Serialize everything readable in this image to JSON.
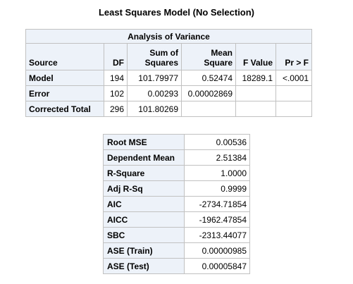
{
  "title": "Least Squares Model (No Selection)",
  "anova": {
    "caption": "Analysis of Variance",
    "headers": {
      "source": "Source",
      "df": "DF",
      "ss_line1": "Sum of",
      "ss_line2": "Squares",
      "ms_line1": "Mean",
      "ms_line2": "Square",
      "f": "F Value",
      "p": "Pr > F"
    },
    "rows": [
      {
        "source": "Model",
        "df": "194",
        "ss": "101.79977",
        "ms": "0.52474",
        "f": "18289.1",
        "p": "<.0001"
      },
      {
        "source": "Error",
        "df": "102",
        "ss": "0.00293",
        "ms": "0.00002869",
        "f": "",
        "p": ""
      },
      {
        "source": "Corrected Total",
        "df": "296",
        "ss": "101.80269",
        "ms": "",
        "f": "",
        "p": ""
      }
    ]
  },
  "fit": {
    "rows": [
      {
        "label": "Root MSE",
        "value": "0.00536"
      },
      {
        "label": "Dependent Mean",
        "value": "2.51384"
      },
      {
        "label": "R-Square",
        "value": "1.0000"
      },
      {
        "label": "Adj R-Sq",
        "value": "0.9999"
      },
      {
        "label": "AIC",
        "value": "-2734.71854"
      },
      {
        "label": "AICC",
        "value": "-1962.47854"
      },
      {
        "label": "SBC",
        "value": "-2313.44077"
      },
      {
        "label": "ASE (Train)",
        "value": "0.00000985"
      },
      {
        "label": "ASE (Test)",
        "value": "0.00005847"
      }
    ]
  }
}
